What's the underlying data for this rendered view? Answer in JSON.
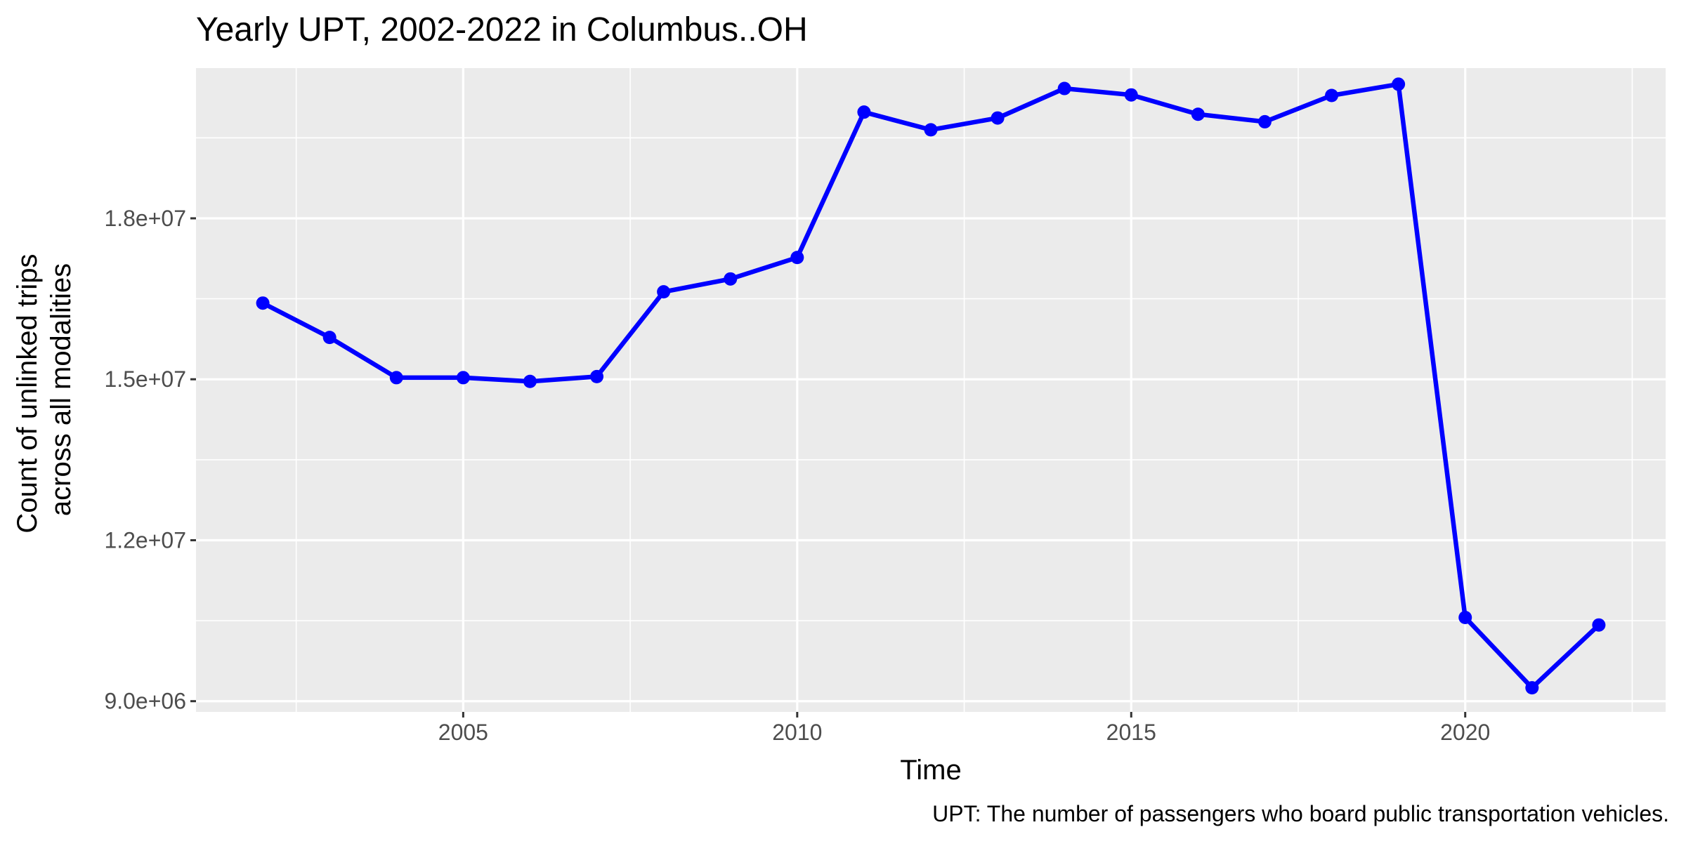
{
  "chart_data": {
    "type": "line",
    "title": "Yearly UPT, 2002-2022 in Columbus..OH",
    "xlabel": "Time",
    "ylabel_lines": [
      "Count of unlinked trips",
      "across all modalities"
    ],
    "caption": "UPT: The number of passengers who board public transportation vehicles.",
    "xlim": [
      2001,
      2023
    ],
    "ylim": [
      8800000,
      20800000
    ],
    "x_ticks": [
      2005,
      2010,
      2015,
      2020
    ],
    "x_tick_labels": [
      "2005",
      "2010",
      "2015",
      "2020"
    ],
    "y_ticks": [
      9000000,
      12000000,
      15000000,
      18000000
    ],
    "y_tick_labels": [
      "9.0e+06",
      "1.2e+07",
      "1.5e+07",
      "1.8e+07"
    ],
    "grid": true,
    "series": [
      {
        "color": "#0000ff",
        "x": [
          2002,
          2003,
          2004,
          2005,
          2006,
          2007,
          2008,
          2009,
          2010,
          2011,
          2012,
          2013,
          2014,
          2015,
          2016,
          2017,
          2018,
          2019,
          2020,
          2021,
          2022
        ],
        "y": [
          16420000,
          15780000,
          15030000,
          15030000,
          14960000,
          15050000,
          16630000,
          16870000,
          17270000,
          19980000,
          19650000,
          19870000,
          20420000,
          20300000,
          19940000,
          19800000,
          20290000,
          20500000,
          10560000,
          9250000,
          10420000
        ]
      }
    ]
  }
}
